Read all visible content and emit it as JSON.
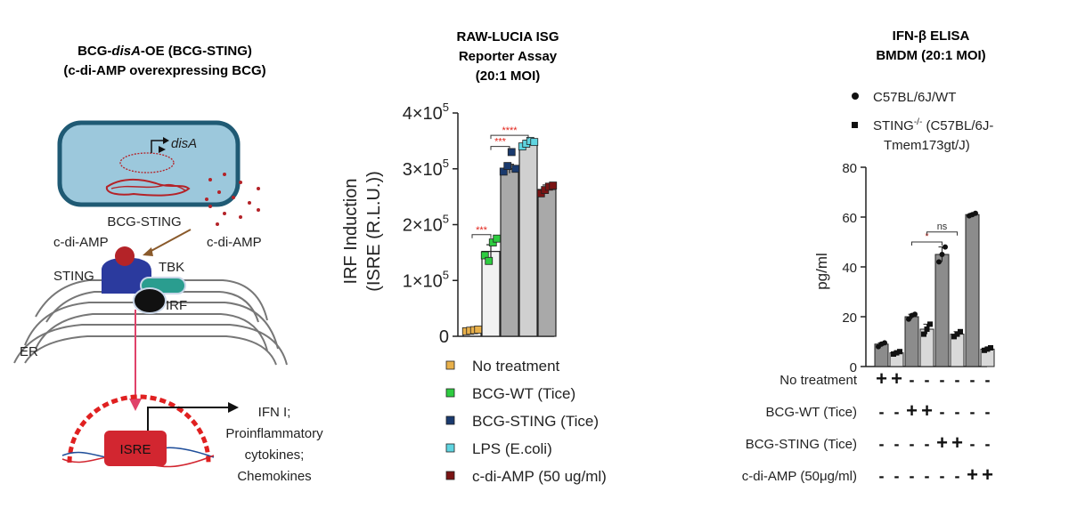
{
  "panel_a": {
    "title_line1_pre": "BCG-",
    "title_line1_ital": "disA",
    "title_line1_post": "-OE (BCG-STING)",
    "title_line2": "(c-di-AMP overexpressing BCG)",
    "gene_label": "disA",
    "bacterium_label": "BCG-STING",
    "cdiamp_left": "c-di-AMP",
    "cdiamp_right": "c-di-AMP",
    "sting_label": "STING",
    "tbk_label": "TBK",
    "irf_label": "IRF",
    "er_label": "ER",
    "isre_label": "ISRE",
    "output_line1": "IFN I;",
    "output_line2": "Proinflammatory",
    "output_line3": "cytokines;",
    "output_line4": "Chemokines",
    "colors": {
      "bacterium": "#9cc8dc",
      "bacterium_border": "#1f5a74",
      "sting": "#2b3a9e",
      "tbk": "#2a9d8f",
      "irf": "#111111",
      "isre": "#d22630",
      "cdiamp": "#b42328",
      "arrow": "#e0426a"
    }
  },
  "panel_b": {
    "title_line1": "RAW-LUCIA ISG",
    "title_line2": "Reporter Assay",
    "title_line3": "(20:1 MOI)",
    "y_label_line1": "IRF Induction",
    "y_label_line2": "(ISRE (R.L.U.))",
    "y_ticks": [
      {
        "value": 0,
        "text": "0",
        "exp": ""
      },
      {
        "value": 100000,
        "text": "1×10",
        "exp": "5"
      },
      {
        "value": 200000,
        "text": "2×10",
        "exp": "5"
      },
      {
        "value": 300000,
        "text": "3×10",
        "exp": "5"
      },
      {
        "value": 400000,
        "text": "4×10",
        "exp": "5"
      }
    ],
    "sig_labels": [
      "****",
      "***",
      "***"
    ],
    "legend": [
      {
        "label": "No treatment",
        "color": "#e8b04a"
      },
      {
        "label": "BCG-WT (Tice)",
        "color": "#2ecc40"
      },
      {
        "label": "BCG-STING (Tice)",
        "color": "#1a3a6e"
      },
      {
        "label": "LPS (E.coli)",
        "color": "#5fd4e0"
      },
      {
        "label": "c-di-AMP (50 ug/ml)",
        "color": "#7a1414"
      }
    ]
  },
  "panel_c": {
    "title_line1": "IFN-β ELISA",
    "title_line2": "BMDM (20:1 MOI)",
    "legend_wt": "C57BL/6J/WT",
    "legend_ko_pre": "STING",
    "legend_ko_sup": "-/-",
    "legend_ko_post": " (C57BL/6J-",
    "legend_ko_line2": "Tmem173gt/J)",
    "y_label": "pg/ml",
    "y_ticks": [
      "0",
      "20",
      "40",
      "60",
      "80"
    ],
    "sig_star": "*",
    "sig_ns": "ns",
    "conditions": [
      {
        "label": "No treatment",
        "signs": [
          "+",
          "+",
          "-",
          "-",
          "-",
          "-",
          "-",
          "-"
        ]
      },
      {
        "label": "BCG-WT (Tice)",
        "signs": [
          "-",
          "-",
          "+",
          "+",
          "-",
          "-",
          "-",
          "-"
        ]
      },
      {
        "label": "BCG-STING (Tice)",
        "signs": [
          "-",
          "-",
          "-",
          "-",
          "+",
          "+",
          "-",
          "-"
        ]
      },
      {
        "label": "c-di-AMP (50μg/ml)",
        "signs": [
          "-",
          "-",
          "-",
          "-",
          "-",
          "-",
          "+",
          "+"
        ]
      }
    ]
  },
  "chart_data": [
    {
      "type": "bar",
      "title": "RAW-LUCIA ISG Reporter Assay (20:1 MOI)",
      "ylabel": "IRF Induction (ISRE (R.L.U.))",
      "ylim": [
        0,
        400000
      ],
      "categories": [
        "No treatment",
        "BCG-WT (Tice)",
        "BCG-STING (Tice)",
        "LPS (E.coli)",
        "c-di-AMP (50 ug/ml)"
      ],
      "values": [
        10000,
        152000,
        300000,
        345000,
        263000
      ],
      "errors": [
        3000,
        12000,
        8000,
        6000,
        8000
      ],
      "bar_colors": [
        "#f2f2f2",
        "#f2f2f2",
        "#a9a9a9",
        "#d0d0d0",
        "#a9a9a9"
      ],
      "points": [
        [
          9000,
          10000,
          11000,
          12000
        ],
        [
          145000,
          135000,
          168000,
          175000
        ],
        [
          295000,
          305000,
          330000,
          300000
        ],
        [
          340000,
          345000,
          350000,
          348000
        ],
        [
          256000,
          262000,
          268000,
          270000
        ]
      ],
      "significance": [
        {
          "from": 1,
          "to": 2,
          "label": "***"
        },
        {
          "from": 1,
          "to": 3,
          "label": "****"
        },
        {
          "from": 0,
          "to": 1,
          "label": "***"
        }
      ],
      "grid": false,
      "legend": "below"
    },
    {
      "type": "bar",
      "title": "IFN-β ELISA BMDM (20:1 MOI)",
      "ylabel": "pg/ml",
      "ylim": [
        0,
        80
      ],
      "categories": [
        "No treatment",
        "BCG-WT (Tice)",
        "BCG-STING (Tice)",
        "c-di-AMP (50μg/ml)"
      ],
      "series": [
        {
          "name": "C57BL/6J/WT",
          "values": [
            9,
            20,
            45,
            61
          ],
          "points": [
            [
              8,
              9,
              9.5
            ],
            [
              19,
              20.5,
              21
            ],
            [
              42,
              45,
              48
            ],
            [
              60.5,
              61,
              61.5
            ]
          ]
        },
        {
          "name": "STING-/- (C57BL/6J-Tmem173gt/J)",
          "values": [
            5.5,
            15,
            13,
            7
          ],
          "points": [
            [
              5,
              5.5,
              6
            ],
            [
              13,
              15,
              17
            ],
            [
              12,
              13,
              14
            ],
            [
              6.5,
              7,
              7.5
            ]
          ]
        }
      ],
      "significance": [
        {
          "pair": [
            1,
            2
          ],
          "series": "WT",
          "label": "*"
        },
        {
          "pair": [
            1,
            2
          ],
          "series": "STING-/-",
          "label": "ns"
        }
      ],
      "grid": false,
      "legend": "top"
    }
  ]
}
